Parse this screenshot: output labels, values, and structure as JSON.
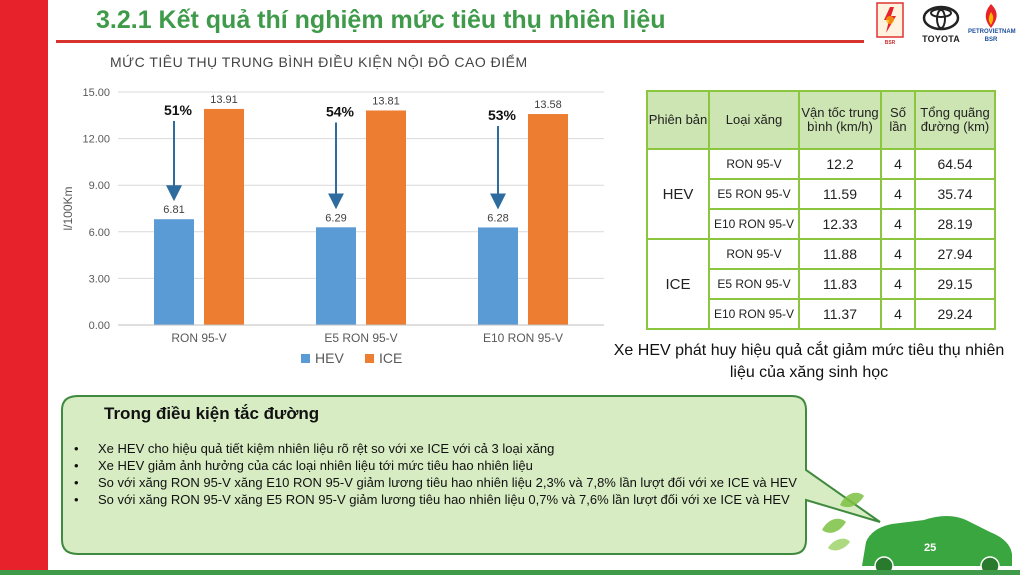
{
  "slide": {
    "title": "3.2.1 Kết quả thí nghiệm mức tiêu thụ nhiên liệu",
    "page_number": "25"
  },
  "logos": {
    "bsr_label": "BSR",
    "toyota_label": "TOYOTA",
    "petrovietnam_label": "PETROVIETNAM",
    "petrovietnam_sub": "BSR"
  },
  "colors": {
    "accent_red": "#e8222a",
    "title_green": "#3f9b4a",
    "hev_blue": "#5b9bd5",
    "ice_orange": "#ed7d31",
    "arrow_blue": "#2e6b9e",
    "table_border": "#8cc63f",
    "table_header": "#cde5b2",
    "callout_fill": "#d7ecc3"
  },
  "chart_data": {
    "type": "bar",
    "title": "MỨC TIÊU THỤ TRUNG BÌNH ĐIỀU KIỆN NỘI ĐÔ CAO ĐIỂM",
    "ylabel": "l/100Km",
    "xlabel": "",
    "ylim": [
      0,
      15
    ],
    "yticks": [
      "0.00",
      "3.00",
      "6.00",
      "9.00",
      "12.00",
      "15.00"
    ],
    "grid": true,
    "legend": "bottom",
    "categories": [
      "RON 95-V",
      "E5 RON 95-V",
      "E10 RON 95-V"
    ],
    "series": [
      {
        "name": "HEV",
        "values": [
          6.81,
          6.29,
          6.28
        ],
        "labels": [
          "6.81",
          "6.29",
          "6.28"
        ]
      },
      {
        "name": "ICE",
        "values": [
          13.91,
          13.81,
          13.58
        ],
        "labels": [
          "13.91",
          "13.81",
          "13.58"
        ]
      }
    ],
    "annotations": [
      "51%",
      "54%",
      "53%"
    ]
  },
  "table": {
    "headers": [
      "Phiên bản",
      "Loại xăng",
      "Vận tốc trung bình (km/h)",
      "Số lần",
      "Tổng quãng đường (km)"
    ],
    "groups": [
      {
        "variant": "HEV",
        "rows": [
          {
            "fuel": "RON 95-V",
            "speed": "12.2",
            "runs": "4",
            "distance": "64.54"
          },
          {
            "fuel": "E5 RON 95-V",
            "speed": "11.59",
            "runs": "4",
            "distance": "35.74"
          },
          {
            "fuel": "E10 RON 95-V",
            "speed": "12.33",
            "runs": "4",
            "distance": "28.19"
          }
        ]
      },
      {
        "variant": "ICE",
        "rows": [
          {
            "fuel": "RON 95-V",
            "speed": "11.88",
            "runs": "4",
            "distance": "27.94"
          },
          {
            "fuel": "E5 RON 95-V",
            "speed": "11.83",
            "runs": "4",
            "distance": "29.15"
          },
          {
            "fuel": "E10 RON 95-V",
            "speed": "11.37",
            "runs": "4",
            "distance": "29.24"
          }
        ]
      }
    ]
  },
  "caption": "Xe HEV phát huy hiệu quả cắt giảm mức tiêu thụ nhiên liệu của xăng sinh học",
  "callout": {
    "heading": "Trong điều kiện tắc đường",
    "bullets": [
      "Xe HEV cho hiệu quả tiết kiệm nhiên liệu rõ rệt so với xe ICE với cả 3 loại xăng",
      "Xe HEV giảm ảnh hưởng của các loại nhiên liệu tới mức tiêu hao nhiên liệu",
      " So với xăng RON 95-V xăng E10 RON 95-V giảm lương tiêu hao nhiên liệu 2,3% và 7,8% lần lượt đối với xe ICE và HEV",
      "So với xăng RON 95-V xăng E5 RON 95-V giảm lương tiêu hao nhiên liệu 0,7% và 7,6% lần lượt đối với xe ICE và HEV"
    ]
  }
}
